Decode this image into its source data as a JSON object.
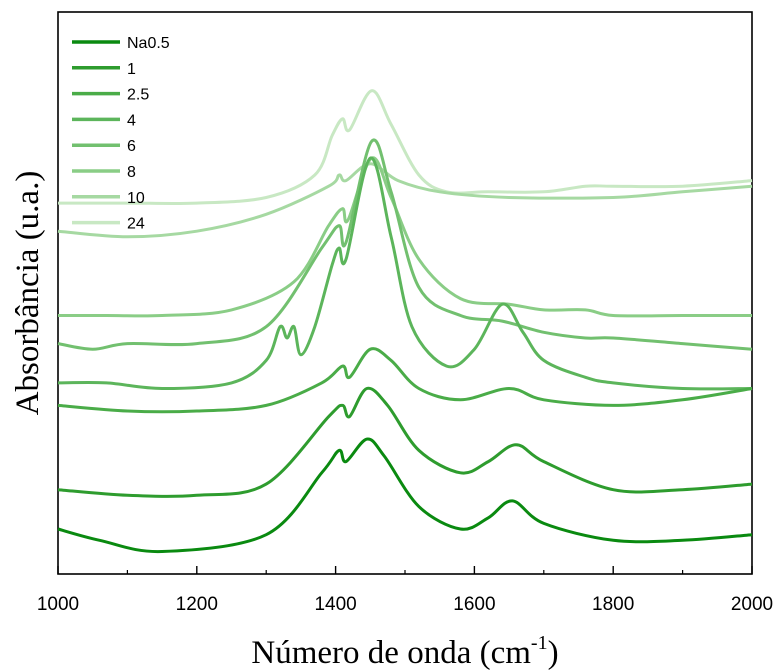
{
  "chart_data": {
    "type": "line",
    "title": "",
    "xlabel": "Número de onda (cm",
    "xlabel_sup": "-1",
    "xlabel_tail": ")",
    "ylabel": "Absorbância (u.a.)",
    "xlim": [
      1000,
      2000
    ],
    "x_ticks": [
      1000,
      1200,
      1400,
      1600,
      1800,
      2000
    ],
    "y_ticks_shown": false,
    "grid": false,
    "legend_position": "top-left",
    "series": [
      {
        "name": "Na0.5",
        "color": "#0a8a10",
        "points": [
          [
            1000,
            0.92
          ],
          [
            1060,
            0.94
          ],
          [
            1150,
            0.96
          ],
          [
            1300,
            0.93
          ],
          [
            1380,
            0.82
          ],
          [
            1405,
            0.78
          ],
          [
            1415,
            0.8
          ],
          [
            1445,
            0.76
          ],
          [
            1470,
            0.79
          ],
          [
            1520,
            0.88
          ],
          [
            1580,
            0.92
          ],
          [
            1620,
            0.9
          ],
          [
            1655,
            0.87
          ],
          [
            1700,
            0.91
          ],
          [
            1800,
            0.94
          ],
          [
            1900,
            0.94
          ],
          [
            2000,
            0.93
          ]
        ]
      },
      {
        "name": "1",
        "color": "#2e9c2e",
        "points": [
          [
            1000,
            0.85
          ],
          [
            1100,
            0.86
          ],
          [
            1200,
            0.86
          ],
          [
            1300,
            0.84
          ],
          [
            1390,
            0.72
          ],
          [
            1410,
            0.7
          ],
          [
            1420,
            0.72
          ],
          [
            1445,
            0.67
          ],
          [
            1475,
            0.7
          ],
          [
            1520,
            0.78
          ],
          [
            1580,
            0.82
          ],
          [
            1620,
            0.8
          ],
          [
            1660,
            0.77
          ],
          [
            1700,
            0.8
          ],
          [
            1800,
            0.85
          ],
          [
            1900,
            0.85
          ],
          [
            2000,
            0.84
          ]
        ]
      },
      {
        "name": "2.5",
        "color": "#4aac48",
        "points": [
          [
            1000,
            0.7
          ],
          [
            1100,
            0.71
          ],
          [
            1200,
            0.71
          ],
          [
            1300,
            0.7
          ],
          [
            1380,
            0.66
          ],
          [
            1410,
            0.63
          ],
          [
            1420,
            0.65
          ],
          [
            1450,
            0.6
          ],
          [
            1480,
            0.62
          ],
          [
            1520,
            0.67
          ],
          [
            1580,
            0.69
          ],
          [
            1650,
            0.67
          ],
          [
            1700,
            0.69
          ],
          [
            1800,
            0.7
          ],
          [
            1900,
            0.69
          ],
          [
            2000,
            0.67
          ]
        ]
      },
      {
        "name": "4",
        "color": "#5cb55b",
        "points": [
          [
            1000,
            0.66
          ],
          [
            1070,
            0.66
          ],
          [
            1150,
            0.67
          ],
          [
            1250,
            0.66
          ],
          [
            1300,
            0.62
          ],
          [
            1320,
            0.56
          ],
          [
            1330,
            0.58
          ],
          [
            1340,
            0.56
          ],
          [
            1350,
            0.61
          ],
          [
            1370,
            0.56
          ],
          [
            1395,
            0.45
          ],
          [
            1405,
            0.42
          ],
          [
            1415,
            0.44
          ],
          [
            1450,
            0.26
          ],
          [
            1480,
            0.4
          ],
          [
            1510,
            0.56
          ],
          [
            1560,
            0.63
          ],
          [
            1600,
            0.6
          ],
          [
            1640,
            0.52
          ],
          [
            1670,
            0.57
          ],
          [
            1700,
            0.62
          ],
          [
            1760,
            0.65
          ],
          [
            1800,
            0.66
          ],
          [
            1900,
            0.67
          ],
          [
            2000,
            0.67
          ]
        ]
      },
      {
        "name": "6",
        "color": "#72c06f",
        "points": [
          [
            1000,
            0.59
          ],
          [
            1050,
            0.6
          ],
          [
            1100,
            0.59
          ],
          [
            1200,
            0.59
          ],
          [
            1300,
            0.56
          ],
          [
            1380,
            0.42
          ],
          [
            1405,
            0.38
          ],
          [
            1415,
            0.41
          ],
          [
            1452,
            0.23
          ],
          [
            1480,
            0.32
          ],
          [
            1520,
            0.49
          ],
          [
            1580,
            0.54
          ],
          [
            1640,
            0.55
          ],
          [
            1700,
            0.57
          ],
          [
            1760,
            0.58
          ],
          [
            1800,
            0.58
          ],
          [
            1900,
            0.59
          ],
          [
            2000,
            0.6
          ]
        ]
      },
      {
        "name": "8",
        "color": "#8acd86",
        "points": [
          [
            1000,
            0.54
          ],
          [
            1070,
            0.54
          ],
          [
            1150,
            0.54
          ],
          [
            1250,
            0.53
          ],
          [
            1340,
            0.48
          ],
          [
            1390,
            0.38
          ],
          [
            1410,
            0.35
          ],
          [
            1418,
            0.37
          ],
          [
            1452,
            0.26
          ],
          [
            1480,
            0.33
          ],
          [
            1520,
            0.44
          ],
          [
            1580,
            0.51
          ],
          [
            1650,
            0.52
          ],
          [
            1700,
            0.53
          ],
          [
            1760,
            0.53
          ],
          [
            1800,
            0.54
          ],
          [
            1900,
            0.54
          ],
          [
            2000,
            0.54
          ]
        ]
      },
      {
        "name": "10",
        "color": "#a6d9a2",
        "points": [
          [
            1000,
            0.39
          ],
          [
            1100,
            0.4
          ],
          [
            1200,
            0.39
          ],
          [
            1300,
            0.36
          ],
          [
            1390,
            0.31
          ],
          [
            1405,
            0.29
          ],
          [
            1415,
            0.3
          ],
          [
            1450,
            0.27
          ],
          [
            1490,
            0.3
          ],
          [
            1550,
            0.32
          ],
          [
            1650,
            0.33
          ],
          [
            1800,
            0.33
          ],
          [
            1900,
            0.32
          ],
          [
            2000,
            0.31
          ]
        ]
      },
      {
        "name": "24",
        "color": "#c8e8c3",
        "points": [
          [
            1000,
            0.34
          ],
          [
            1100,
            0.34
          ],
          [
            1200,
            0.34
          ],
          [
            1300,
            0.33
          ],
          [
            1370,
            0.29
          ],
          [
            1395,
            0.22
          ],
          [
            1410,
            0.19
          ],
          [
            1420,
            0.21
          ],
          [
            1452,
            0.14
          ],
          [
            1480,
            0.2
          ],
          [
            1520,
            0.29
          ],
          [
            1560,
            0.32
          ],
          [
            1620,
            0.32
          ],
          [
            1700,
            0.32
          ],
          [
            1760,
            0.31
          ],
          [
            1800,
            0.31
          ],
          [
            1900,
            0.31
          ],
          [
            2000,
            0.3
          ]
        ]
      }
    ]
  }
}
